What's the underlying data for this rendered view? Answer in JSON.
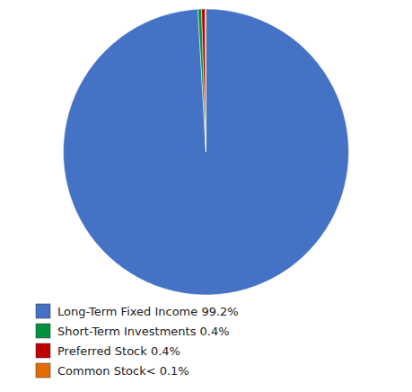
{
  "chart_data": {
    "type": "pie",
    "categories": [
      "Long-Term Fixed Income 99.2%",
      "Short-Term Investments 0.4%",
      "Preferred Stock 0.4%",
      "Common Stock< 0.1%"
    ],
    "values": [
      99.2,
      0.4,
      0.4,
      0.1
    ],
    "colors": [
      "#4472C4",
      "#00923F",
      "#C00000",
      "#E36C09"
    ],
    "legend": "bottom"
  }
}
